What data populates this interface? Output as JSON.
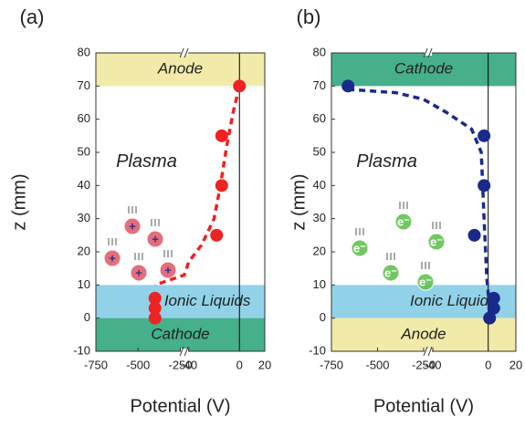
{
  "chart_data": [
    {
      "type": "scatter",
      "panel_label": "(a)",
      "xlabel": "Potential (V)",
      "ylabel": "z (mm)",
      "xlim": [
        -750,
        20
      ],
      "xbreak": [
        -250,
        -40
      ],
      "xticks": [
        -750,
        -500,
        -250,
        -40,
        0,
        20
      ],
      "ylim": [
        -10,
        80
      ],
      "yticks": [
        -10,
        0,
        10,
        20,
        30,
        40,
        50,
        60,
        70,
        80
      ],
      "reference_x": 0,
      "regions": [
        {
          "label": "Anode",
          "range": [
            70,
            80
          ],
          "color": "#f2eaa8"
        },
        {
          "label": "Ionic Liquids",
          "range": [
            0,
            10
          ],
          "color": "#92d2e8"
        },
        {
          "label": "Cathode",
          "range": [
            -10,
            0
          ],
          "color": "#45b08a"
        }
      ],
      "annotation": "Plasma",
      "particle_label": "+",
      "particle_color": "#e0606e",
      "series": [
        {
          "mode": "markers",
          "color": "#ee2222",
          "x": [
            0,
            -14,
            -14,
            -18,
            -400,
            -400,
            -400
          ],
          "values": [
            70,
            55,
            40,
            25,
            6,
            3,
            0
          ]
        },
        {
          "mode": "dashed",
          "color": "#ee2222",
          "x": [
            0,
            -5,
            -10,
            -15,
            -20,
            -30,
            -40,
            -150,
            -400
          ],
          "values": [
            70,
            62,
            52,
            40,
            30,
            22,
            17,
            13,
            10
          ]
        }
      ]
    },
    {
      "type": "scatter",
      "panel_label": "(b)",
      "xlabel": "Potential (V)",
      "ylabel": "z (mm)",
      "xlim": [
        -750,
        20
      ],
      "xbreak": [
        -250,
        -40
      ],
      "xticks": [
        -750,
        -500,
        -250,
        -40,
        0,
        20
      ],
      "ylim": [
        -10,
        80
      ],
      "yticks": [
        -10,
        0,
        10,
        20,
        30,
        40,
        50,
        60,
        70,
        80
      ],
      "reference_x": 0,
      "regions": [
        {
          "label": "Cathode",
          "range": [
            70,
            80
          ],
          "color": "#45b08a"
        },
        {
          "label": "Ionic Liquids",
          "range": [
            0,
            10
          ],
          "color": "#92d2e8"
        },
        {
          "label": "Anode",
          "range": [
            -10,
            0
          ],
          "color": "#f2eaa8"
        }
      ],
      "annotation": "Plasma",
      "particle_label": "e⁻",
      "particle_color": "#62c152",
      "series": [
        {
          "mode": "markers",
          "color": "#1a2a8a",
          "x": [
            -660,
            -3,
            -3,
            -10,
            4,
            4,
            1
          ],
          "values": [
            70,
            55,
            40,
            25,
            6,
            3,
            0
          ]
        },
        {
          "mode": "dashed",
          "color": "#1a2a8a",
          "x": [
            -660,
            -400,
            -250,
            -30,
            -12,
            -5,
            -3,
            -1,
            1
          ],
          "values": [
            69,
            68,
            66,
            62,
            57,
            50,
            30,
            12,
            3
          ]
        }
      ]
    }
  ]
}
